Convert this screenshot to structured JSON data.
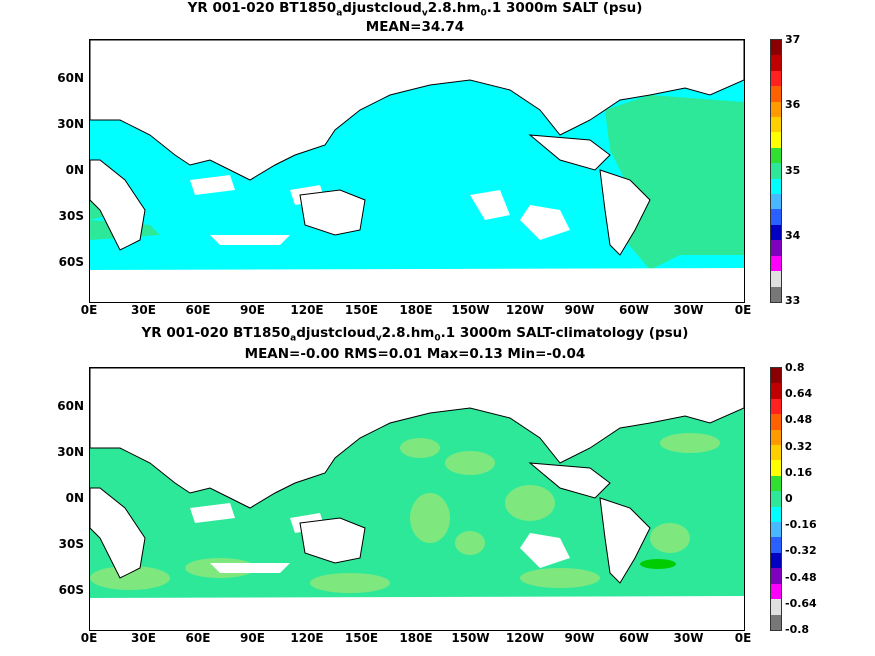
{
  "maps": [
    {
      "title_main": "YR 001-020 BT1850",
      "title_sub1": "a",
      "title_mid": "djustcloud",
      "title_sub2": "v",
      "title_mid2": "2.8.hm",
      "title_sub3": "0",
      "title_end": ".1 3000m SALT (psu)",
      "stats": "MEAN=34.74",
      "colorbar_labels": [
        "37",
        "36",
        "35",
        "34",
        "33"
      ],
      "colorbar_colors": [
        "#8a0000",
        "#c00000",
        "#ff2020",
        "#ff6000",
        "#ff9a00",
        "#ffd000",
        "#ffff00",
        "#30e030",
        "#2ee89a",
        "#00ffff",
        "#4ab8ff",
        "#2a60ff",
        "#0000c0",
        "#8000c0",
        "#ff00ff",
        "#e0e0e0",
        "#777777"
      ],
      "field_color": "#00ffff",
      "anomaly_color": "#2ee89a"
    },
    {
      "title_main": "YR 001-020 BT1850",
      "title_sub1": "a",
      "title_mid": "djustcloud",
      "title_sub2": "v",
      "title_mid2": "2.8.hm",
      "title_sub3": "0",
      "title_end": ".1 3000m SALT-climatology (psu)",
      "stats": "MEAN=-0.00   RMS=0.01   Max=0.13   Min=-0.04",
      "colorbar_labels": [
        "0.8",
        "0.64",
        "0.48",
        "0.32",
        "0.16",
        "0",
        "-0.16",
        "-0.32",
        "-0.48",
        "-0.64",
        "-0.8"
      ],
      "colorbar_colors": [
        "#8a0000",
        "#c00000",
        "#ff2020",
        "#ff6000",
        "#ff9a00",
        "#ffd000",
        "#ffff00",
        "#30e030",
        "#2ee89a",
        "#00ffff",
        "#4ab8ff",
        "#2a60ff",
        "#0000c0",
        "#8000c0",
        "#ff00ff",
        "#e0e0e0",
        "#777777"
      ],
      "field_color": "#2ee89a",
      "anomaly_color": "#7ee87e"
    }
  ],
  "lat_labels": [
    "60N",
    "30N",
    "0N",
    "30S",
    "60S"
  ],
  "lon_labels": [
    "0E",
    "30E",
    "60E",
    "90E",
    "120E",
    "150E",
    "180E",
    "150W",
    "120W",
    "90W",
    "60W",
    "30W",
    "0E"
  ]
}
